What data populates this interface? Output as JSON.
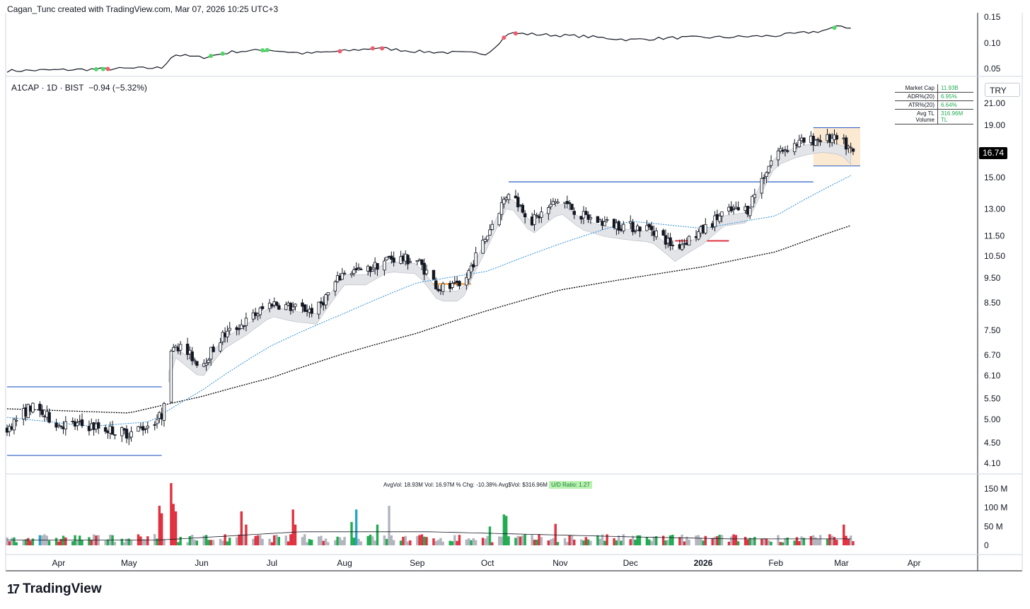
{
  "header": "Cagan_Tunc created with TradingView.com, Mar 07, 2026 10:25 UTC+3",
  "brand": "TradingView",
  "legend": {
    "symbol": "A1CAP · 1D · BIST",
    "change": "−0.94 (−5.32%)"
  },
  "currency": "TRY",
  "last_price": "16.74",
  "stats": [
    {
      "label": "Market Cap",
      "value": "11.93B"
    },
    {
      "label": "ADR%(20)",
      "value": "6.95%"
    },
    {
      "label": "ATR%(20)",
      "value": "6.64%"
    },
    {
      "label": "Avg TL Volume",
      "value": "316.96M TL"
    }
  ],
  "vol_info": {
    "text": "AvgVol: 18.93M   Vol: 16.97M   % Chg: -10.38%   Avg$Vol: $316.96M",
    "ud": "U/D Ratio: 1.27"
  },
  "colors": {
    "up": "#22ab52",
    "down": "#e0313f",
    "neutral": "#b2b5be",
    "ma50": "#2e8fd6",
    "ma200": "#000000",
    "level": "#2b5fc4"
  },
  "chart_data": {
    "type": "line",
    "panels": [
      {
        "name": "indicator",
        "y_ticks": [
          "0.15",
          "0.10",
          "0.05"
        ],
        "x": [
          "2025-03-10",
          "2025-04-15",
          "2025-05-15",
          "2025-05-20",
          "2025-06-01",
          "2025-06-15",
          "2025-06-30",
          "2025-07-15",
          "2025-08-01",
          "2025-08-15",
          "2025-09-01",
          "2025-09-15",
          "2025-10-01",
          "2025-10-10",
          "2025-10-25",
          "2025-11-10",
          "2025-12-01",
          "2025-12-20",
          "2026-01-10",
          "2026-02-01",
          "2026-02-20",
          "2026-03-01",
          "2026-03-06"
        ],
        "y": [
          0.047,
          0.05,
          0.053,
          0.079,
          0.073,
          0.085,
          0.088,
          0.081,
          0.086,
          0.092,
          0.085,
          0.083,
          0.081,
          0.121,
          0.118,
          0.115,
          0.108,
          0.112,
          0.113,
          0.116,
          0.125,
          0.135,
          0.13
        ]
      },
      {
        "name": "price",
        "y_scale": "log",
        "y_ticks": [
          "21.00",
          "19.00",
          "16.74",
          "15.00",
          "13.00",
          "11.50",
          "10.50",
          "9.50",
          "8.50",
          "7.50",
          "6.70",
          "6.10",
          "5.50",
          "5.00",
          "4.50",
          "4.10"
        ],
        "series": [
          {
            "name": "price",
            "x": [
              "2025-03-10",
              "2025-03-20",
              "2025-04-01",
              "2025-04-15",
              "2025-05-01",
              "2025-05-10",
              "2025-05-15",
              "2025-05-20",
              "2025-06-01",
              "2025-06-10",
              "2025-06-20",
              "2025-07-01",
              "2025-07-10",
              "2025-07-20",
              "2025-08-01",
              "2025-08-10",
              "2025-08-20",
              "2025-09-01",
              "2025-09-10",
              "2025-09-20",
              "2025-10-01",
              "2025-10-10",
              "2025-10-20",
              "2025-11-01",
              "2025-11-10",
              "2025-11-20",
              "2025-12-01",
              "2025-12-10",
              "2025-12-20",
              "2026-01-01",
              "2026-01-10",
              "2026-01-20",
              "2026-02-01",
              "2026-02-10",
              "2026-02-20",
              "2026-03-01",
              "2026-03-06"
            ],
            "y": [
              4.8,
              5.3,
              4.9,
              4.85,
              4.7,
              4.9,
              5.1,
              7.1,
              6.4,
              7.3,
              7.8,
              8.5,
              8.3,
              8.2,
              9.8,
              9.8,
              10.4,
              10.3,
              9.1,
              9.1,
              11.6,
              14.1,
              12.3,
              13.6,
              12.6,
              12.2,
              12.0,
              11.9,
              10.9,
              11.8,
              12.8,
              13.0,
              16.8,
              17.5,
              17.9,
              17.7,
              16.74
            ]
          },
          {
            "name": "ma50",
            "x": [
              "2025-03-10",
              "2025-04-15",
              "2025-05-10",
              "2025-06-01",
              "2025-07-01",
              "2025-08-01",
              "2025-09-01",
              "2025-10-01",
              "2025-11-01",
              "2025-12-01",
              "2026-01-01",
              "2026-02-01",
              "2026-03-06"
            ],
            "y": [
              5.05,
              4.85,
              4.95,
              5.7,
              7.0,
              8.1,
              9.3,
              9.8,
              11.1,
              12.3,
              11.9,
              12.6,
              15.2
            ]
          },
          {
            "name": "ma200",
            "x": [
              "2025-03-10",
              "2025-05-01",
              "2025-06-01",
              "2025-07-01",
              "2025-08-01",
              "2025-09-01",
              "2025-10-01",
              "2025-11-01",
              "2025-12-01",
              "2026-01-01",
              "2026-02-01",
              "2026-03-06"
            ],
            "y": [
              5.25,
              5.15,
              5.55,
              6.05,
              6.75,
              7.4,
              8.2,
              9.0,
              9.5,
              10.0,
              10.7,
              12.1
            ]
          }
        ],
        "levels": [
          {
            "y": 5.8,
            "x0": "2025-03-10",
            "x1": "2025-05-15"
          },
          {
            "y": 4.25,
            "x0": "2025-03-10",
            "x1": "2025-05-15"
          },
          {
            "y": 14.7,
            "x0": "2025-10-10",
            "x1": "2026-02-17"
          }
        ]
      },
      {
        "name": "volume",
        "y_ticks": [
          "150 M",
          "100 M",
          "50 M",
          "0"
        ]
      }
    ],
    "x_ticks": [
      "Apr",
      "May",
      "Jun",
      "Jul",
      "Aug",
      "Sep",
      "Oct",
      "Nov",
      "Dec",
      "2026",
      "Feb",
      "Mar",
      "Apr"
    ]
  }
}
